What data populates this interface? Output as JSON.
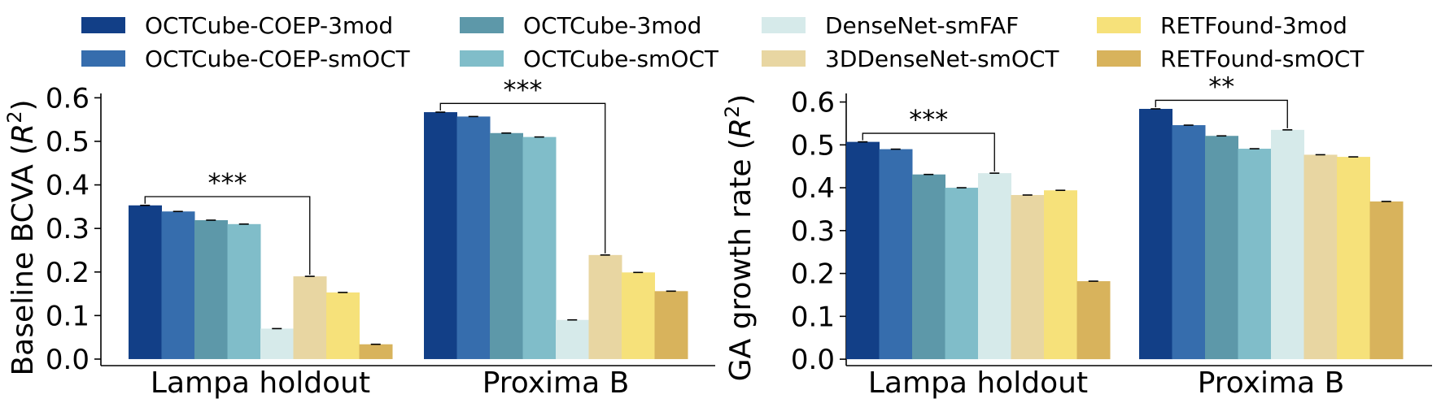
{
  "legend": {
    "items": [
      {
        "label": "OCTCube-COEP-3mod",
        "color": "#123f87"
      },
      {
        "label": "OCTCube-COEP-smOCT",
        "color": "#366dad"
      },
      {
        "label": "OCTCube-3mod",
        "color": "#5d98a9"
      },
      {
        "label": "OCTCube-smOCT",
        "color": "#80bdc9"
      },
      {
        "label": "DenseNet-smFAF",
        "color": "#d6eaea"
      },
      {
        "label": "3DDenseNet-smOCT",
        "color": "#e8d6a2"
      },
      {
        "label": "RETFound-3mod",
        "color": "#f6e17a"
      },
      {
        "label": "RETFound-smOCT",
        "color": "#d8b35c"
      }
    ]
  },
  "chart_data": [
    {
      "type": "bar",
      "ylabel": "Baseline BCVA (R²)",
      "ylabel_main": "Baseline BCVA (",
      "ylabel_var": "R",
      "ylabel_sup": "2",
      "ylabel_close": ")",
      "ylim": [
        -0.015,
        0.61
      ],
      "yticks": [
        "0.0",
        "0.1",
        "0.2",
        "0.3",
        "0.4",
        "0.5",
        "0.6"
      ],
      "ytick_values": [
        0.0,
        0.1,
        0.2,
        0.3,
        0.4,
        0.5,
        0.6
      ],
      "categories": [
        "Lampa holdout",
        "Proxima B"
      ],
      "series": [
        {
          "name": "OCTCube-COEP-3mod",
          "values": [
            0.353,
            0.567
          ]
        },
        {
          "name": "OCTCube-COEP-smOCT",
          "values": [
            0.339,
            0.557
          ]
        },
        {
          "name": "OCTCube-3mod",
          "values": [
            0.319,
            0.519
          ]
        },
        {
          "name": "OCTCube-smOCT",
          "values": [
            0.31,
            0.51
          ]
        },
        {
          "name": "DenseNet-smFAF",
          "values": [
            0.07,
            0.09
          ]
        },
        {
          "name": "3DDenseNet-smOCT",
          "values": [
            0.19,
            0.239
          ]
        },
        {
          "name": "RETFound-3mod",
          "values": [
            0.153,
            0.199
          ]
        },
        {
          "name": "RETFound-smOCT",
          "values": [
            0.034,
            0.156
          ]
        }
      ],
      "significance": [
        {
          "category": 0,
          "from_series": 0,
          "to_series": 5,
          "bracket_y": 0.373,
          "label": "***"
        },
        {
          "category": 1,
          "from_series": 0,
          "to_series": 5,
          "bracket_y": 0.587,
          "label": "***"
        }
      ]
    },
    {
      "type": "bar",
      "ylabel": "GA growth rate (R²)",
      "ylabel_main": "GA growth rate (",
      "ylabel_var": "R",
      "ylabel_sup": "2",
      "ylabel_close": ")",
      "ylim": [
        -0.015,
        0.62
      ],
      "yticks": [
        "0.0",
        "0.1",
        "0.2",
        "0.3",
        "0.4",
        "0.5",
        "0.6"
      ],
      "ytick_values": [
        0.0,
        0.1,
        0.2,
        0.3,
        0.4,
        0.5,
        0.6
      ],
      "categories": [
        "Lampa holdout",
        "Proxima B"
      ],
      "series": [
        {
          "name": "OCTCube-COEP-3mod",
          "values": [
            0.507,
            0.584
          ]
        },
        {
          "name": "OCTCube-COEP-smOCT",
          "values": [
            0.49,
            0.546
          ]
        },
        {
          "name": "OCTCube-3mod",
          "values": [
            0.431,
            0.521
          ]
        },
        {
          "name": "OCTCube-smOCT",
          "values": [
            0.4,
            0.491
          ]
        },
        {
          "name": "DenseNet-smFAF",
          "values": [
            0.434,
            0.535
          ]
        },
        {
          "name": "3DDenseNet-smOCT",
          "values": [
            0.383,
            0.477
          ]
        },
        {
          "name": "RETFound-3mod",
          "values": [
            0.394,
            0.472
          ]
        },
        {
          "name": "RETFound-smOCT",
          "values": [
            0.182,
            0.368
          ]
        }
      ],
      "significance": [
        {
          "category": 0,
          "from_series": 0,
          "to_series": 4,
          "bracket_y": 0.527,
          "label": "***"
        },
        {
          "category": 1,
          "from_series": 0,
          "to_series": 4,
          "bracket_y": 0.604,
          "label": "**"
        }
      ]
    }
  ]
}
